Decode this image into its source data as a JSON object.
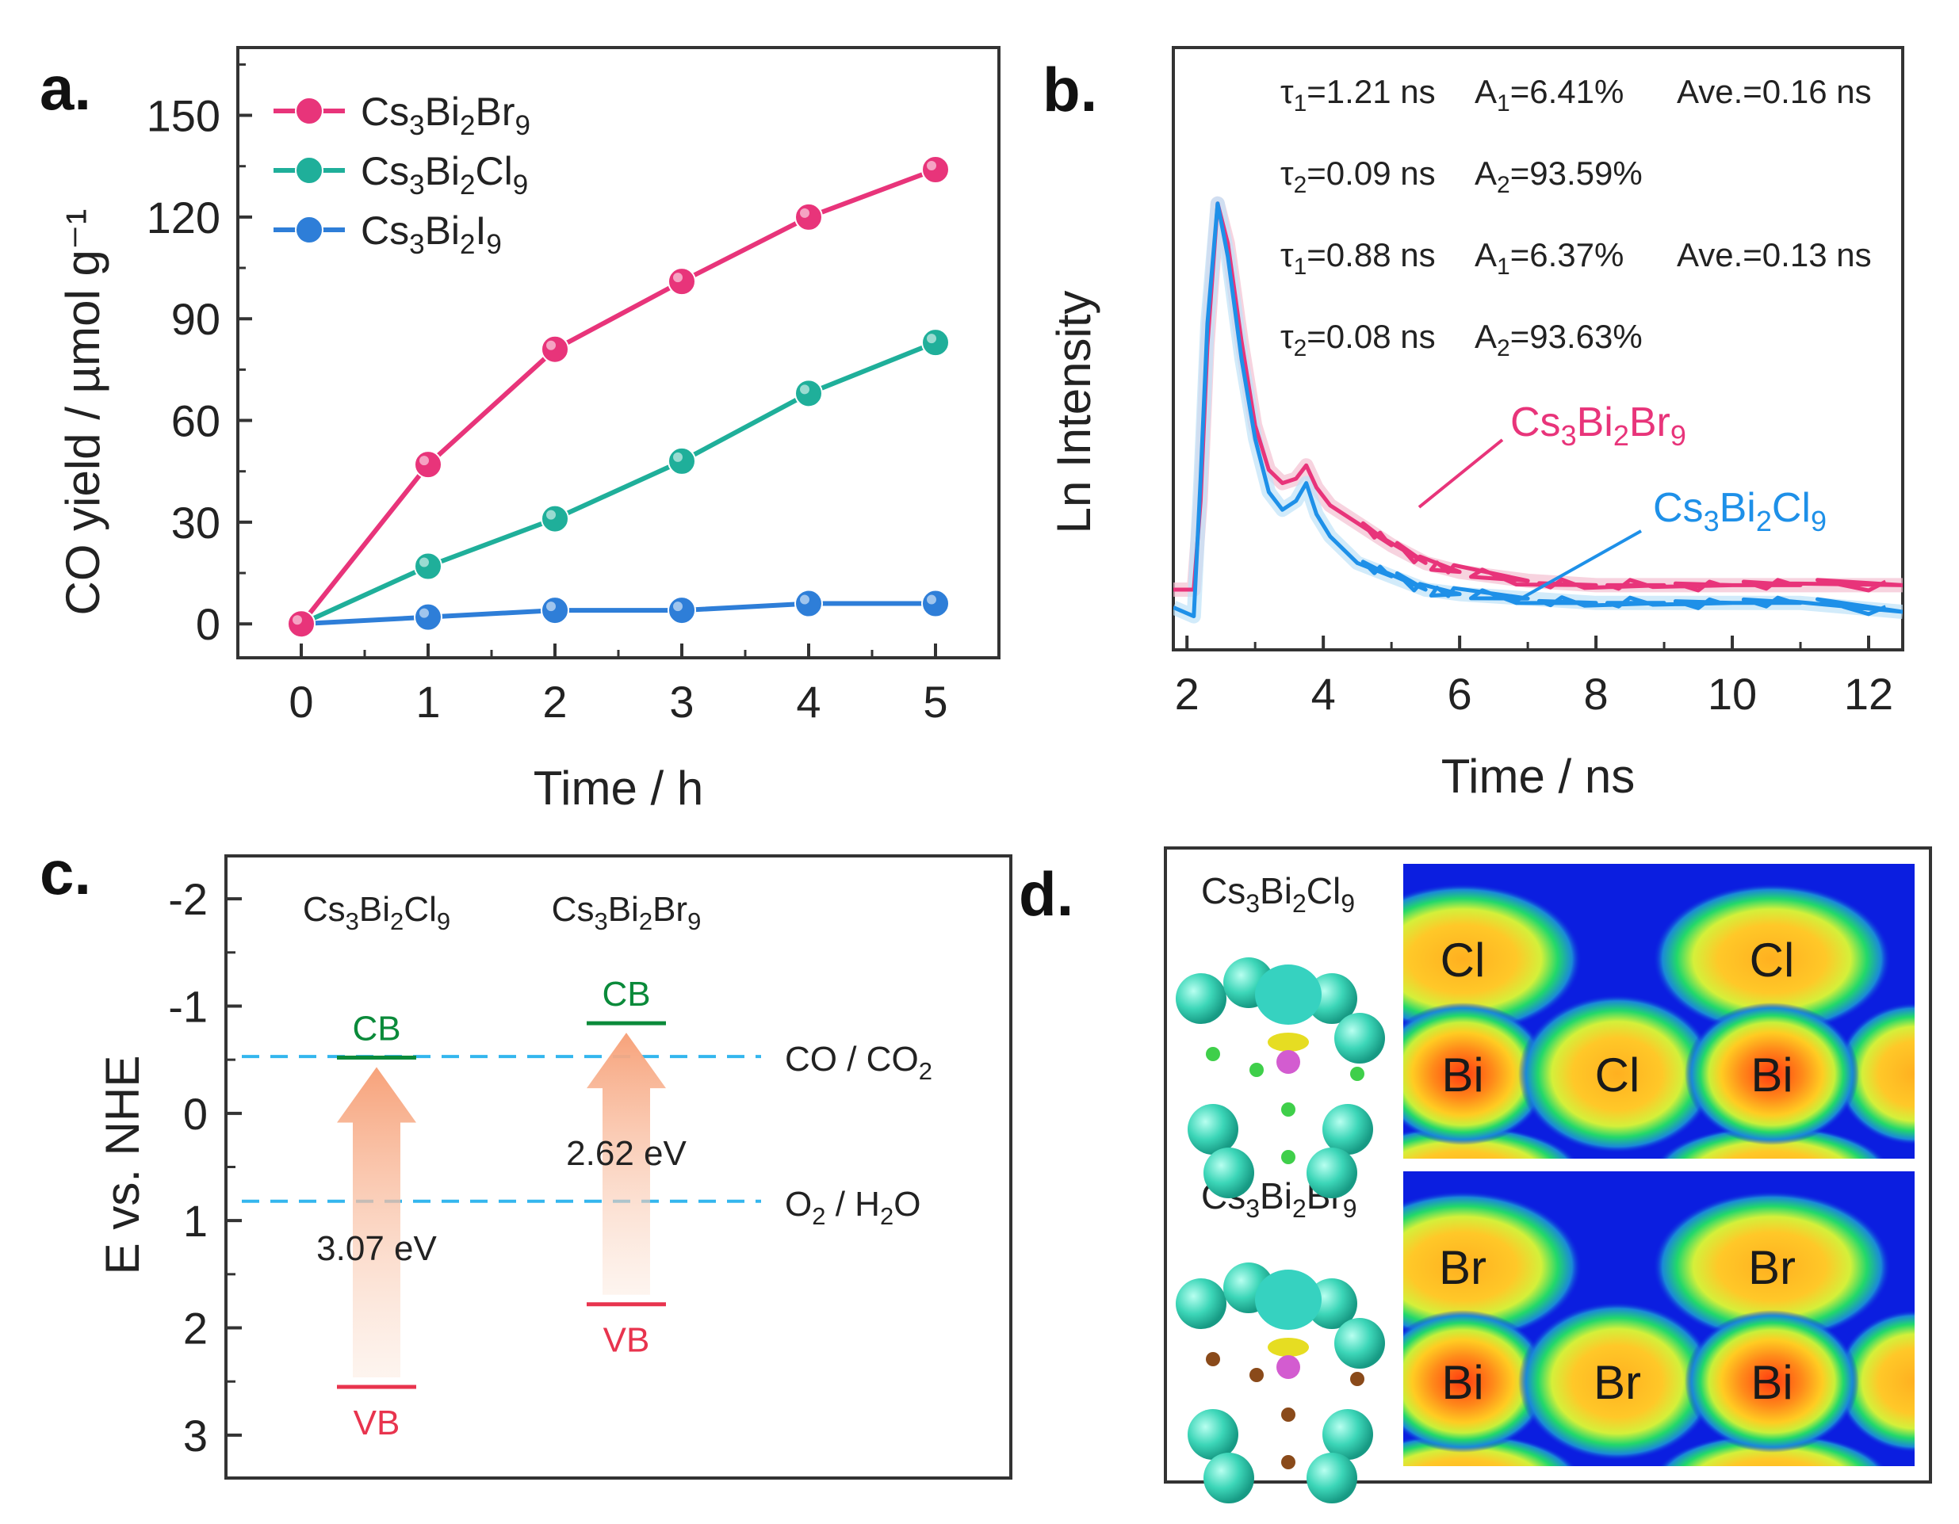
{
  "panel_labels": [
    "a.",
    "b.",
    "c.",
    "d."
  ],
  "chart_data": [
    {
      "panel": "a",
      "type": "line",
      "xlabel": "Time / h",
      "ylabel": "CO yield / µmol g⁻¹",
      "xlim": [
        -0.5,
        5.5
      ],
      "ylim": [
        -10,
        170
      ],
      "xticks": [
        "0",
        "1",
        "2",
        "3",
        "4",
        "5"
      ],
      "yticks": [
        "0",
        "30",
        "60",
        "90",
        "120",
        "150"
      ],
      "x": [
        0,
        1,
        2,
        3,
        4,
        5
      ],
      "series": [
        {
          "name": "Cs3Bi2Br9",
          "label": {
            "main": "Cs",
            "s1": "3",
            "m2": "Bi",
            "s2": "2",
            "m3": "Br",
            "s3": "9"
          },
          "color": "#e8347a",
          "values": [
            0,
            47,
            81,
            101,
            120,
            134
          ]
        },
        {
          "name": "Cs3Bi2Cl9",
          "label": {
            "main": "Cs",
            "s1": "3",
            "m2": "Bi",
            "s2": "2",
            "m3": "Cl",
            "s3": "9"
          },
          "color": "#1faf9a",
          "values": [
            0,
            17,
            31,
            48,
            68,
            83
          ]
        },
        {
          "name": "Cs3Bi2I9",
          "label": {
            "main": "Cs",
            "s1": "3",
            "m2": "Bi",
            "s2": "2",
            "m3": "I",
            "s3": "9"
          },
          "color": "#2e7ed8",
          "values": [
            0,
            2,
            4,
            4,
            6,
            6
          ]
        }
      ]
    },
    {
      "panel": "b",
      "type": "line",
      "xlabel": "Time / ns",
      "ylabel": "Ln Intensity",
      "xlim": [
        1.8,
        12.5
      ],
      "ylim": [
        0,
        1
      ],
      "xticks": [
        "2",
        "4",
        "6",
        "8",
        "10",
        "12"
      ],
      "series": [
        {
          "name": "Cs3Bi2Br9",
          "color": "#e8347a",
          "x": [
            1.8,
            2.1,
            2.2,
            2.3,
            2.45,
            2.6,
            2.8,
            3.0,
            3.2,
            3.4,
            3.6,
            3.75,
            3.9,
            4.1,
            4.5,
            5.0,
            5.5,
            6.0,
            7.0,
            8.0,
            9.0,
            10.0,
            11.0,
            12.5
          ],
          "values": [
            0.1,
            0.1,
            0.3,
            0.65,
            0.97,
            0.88,
            0.66,
            0.47,
            0.37,
            0.34,
            0.35,
            0.38,
            0.33,
            0.29,
            0.25,
            0.2,
            0.16,
            0.14,
            0.12,
            0.11,
            0.11,
            0.11,
            0.11,
            0.11
          ]
        },
        {
          "name": "Cs3Bi2Cl9",
          "color": "#1e90e8",
          "x": [
            1.8,
            2.1,
            2.2,
            2.3,
            2.45,
            2.6,
            2.8,
            3.0,
            3.2,
            3.4,
            3.6,
            3.75,
            3.9,
            4.1,
            4.5,
            5.0,
            5.5,
            6.0,
            7.0,
            8.0,
            9.0,
            10.0,
            11.0,
            12.5
          ],
          "values": [
            0.06,
            0.04,
            0.35,
            0.7,
            0.97,
            0.85,
            0.62,
            0.44,
            0.32,
            0.28,
            0.3,
            0.34,
            0.27,
            0.22,
            0.16,
            0.13,
            0.1,
            0.09,
            0.08,
            0.07,
            0.07,
            0.07,
            0.07,
            0.05
          ]
        }
      ],
      "annotations": [
        {
          "t": "τ",
          "ts": "1",
          "tv": "=1.21 ns",
          "a": "A",
          "as": "1",
          "av": "=6.41%",
          "ave": "Ave.=0.16 ns"
        },
        {
          "t": "τ",
          "ts": "2",
          "tv": "=0.09 ns",
          "a": "A",
          "as": "2",
          "av": "=93.59%",
          "ave": ""
        },
        {
          "t": "τ",
          "ts": "1",
          "tv": "=0.88 ns",
          "a": "A",
          "as": "1",
          "av": "=6.37%",
          "ave": "Ave.=0.13 ns"
        },
        {
          "t": "τ",
          "ts": "2",
          "tv": "=0.08 ns",
          "a": "A",
          "as": "2",
          "av": "=93.63%",
          "ave": ""
        }
      ],
      "labels": [
        {
          "main": "Cs",
          "s1": "3",
          "m2": "Bi",
          "s2": "2",
          "m3": "Br",
          "s3": "9"
        },
        {
          "main": "Cs",
          "s1": "3",
          "m2": "Bi",
          "s2": "2",
          "m3": "Cl",
          "s3": "9"
        }
      ]
    },
    {
      "panel": "c",
      "type": "diagram",
      "ylabel": "E vs. NHE",
      "ylim": [
        -2.4,
        3.4
      ],
      "yticks": [
        "-2",
        "-1",
        "0",
        "1",
        "2",
        "3"
      ],
      "ytick_values": [
        -2,
        -1,
        0,
        1,
        2,
        3
      ],
      "references": [
        {
          "name": "CO / CO2",
          "value": -0.53,
          "parts": {
            "a": "CO / CO",
            "s": "2",
            "b": ""
          }
        },
        {
          "name": "O2 / H2O",
          "value": 0.82,
          "parts": {
            "a": "O",
            "s": "2",
            "b": " / H",
            "s2": "2",
            "c": "O"
          }
        }
      ],
      "materials": [
        {
          "name": "Cs3Bi2Cl9",
          "label": {
            "main": "Cs",
            "s1": "3",
            "m2": "Bi",
            "s2": "2",
            "m3": "Cl",
            "s3": "9"
          },
          "cb": -0.52,
          "vb": 2.55,
          "gap": "3.07 eV",
          "cb_label": "CB",
          "vb_label": "VB"
        },
        {
          "name": "Cs3Bi2Br9",
          "label": {
            "main": "Cs",
            "s1": "3",
            "m2": "Bi",
            "s2": "2",
            "m3": "Br",
            "s3": "9"
          },
          "cb": -0.84,
          "vb": 1.78,
          "gap": "2.62 eV",
          "cb_label": "CB",
          "vb_label": "VB"
        }
      ]
    },
    {
      "panel": "d",
      "type": "heatmap",
      "top": {
        "label": {
          "main": "Cs",
          "s1": "3",
          "m2": "Bi",
          "s2": "2",
          "m3": "Cl",
          "s3": "9"
        },
        "atoms": [
          "Cl",
          "Cl",
          "Bi",
          "Cl",
          "Bi"
        ]
      },
      "bottom": {
        "label": {
          "main": "Cs",
          "s1": "3",
          "m2": "Bi",
          "s2": "2",
          "m3": "Br",
          "s3": "9"
        },
        "atoms": [
          "Br",
          "Br",
          "Bi",
          "Br",
          "Bi"
        ]
      }
    }
  ]
}
